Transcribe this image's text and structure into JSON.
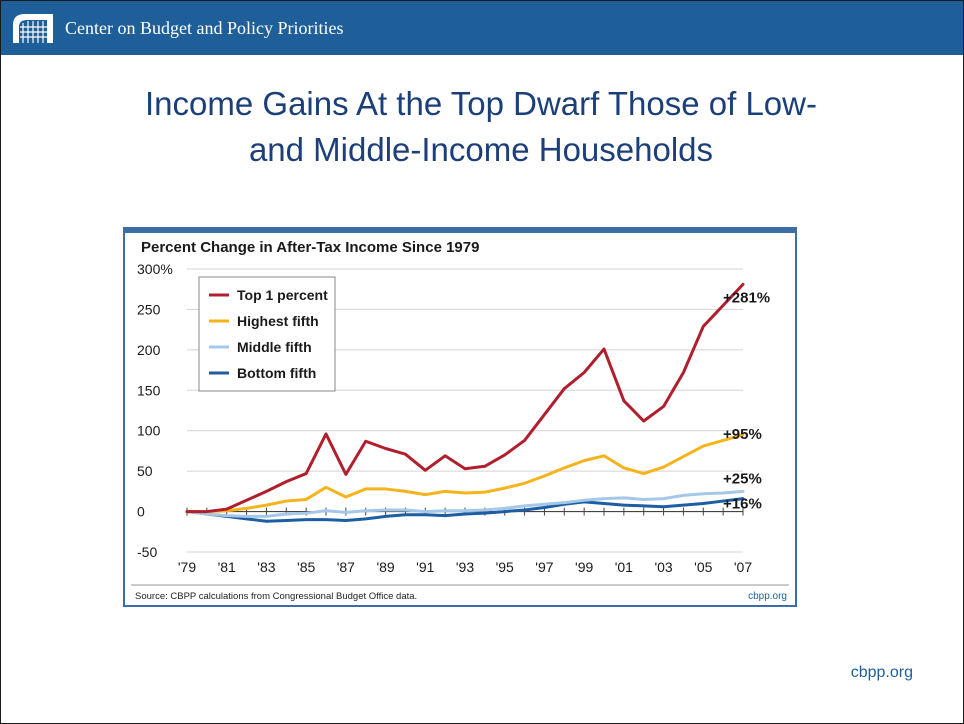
{
  "header": {
    "org_name": "Center on Budget and Policy Priorities"
  },
  "slide": {
    "title_line1": "Income Gains At the Top Dwarf Those of Low-",
    "title_line2": "and Middle-Income Households",
    "footer_link": "cbpp.org"
  },
  "colors": {
    "brand_blue": "#1e5f9a",
    "title_blue": "#1c3f7a",
    "top1": "#b01f2e",
    "highest_fifth": "#f5b41c",
    "middle_fifth": "#a6c8e8",
    "bottom_fifth": "#1d5da3"
  },
  "chart_data": {
    "type": "line",
    "title": "Percent Change in After-Tax Income Since 1979",
    "source": "Source: CBPP calculations from Congressional Budget Office data.",
    "credit": "cbpp.org",
    "x": [
      1979,
      1980,
      1981,
      1982,
      1983,
      1984,
      1985,
      1986,
      1987,
      1988,
      1989,
      1990,
      1991,
      1992,
      1993,
      1994,
      1995,
      1996,
      1997,
      1998,
      1999,
      2000,
      2001,
      2002,
      2003,
      2004,
      2005,
      2006,
      2007
    ],
    "x_tick_labels": [
      "'79",
      "'81",
      "'83",
      "'85",
      "'87",
      "'89",
      "'91",
      "'93",
      "'95",
      "'97",
      "'99",
      "'01",
      "'03",
      "'05",
      "'07"
    ],
    "x_tick_years": [
      1979,
      1981,
      1983,
      1985,
      1987,
      1989,
      1991,
      1993,
      1995,
      1997,
      1999,
      2001,
      2003,
      2005,
      2007
    ],
    "y_tick_labels": [
      "300%",
      "250",
      "200",
      "150",
      "100",
      "50",
      "0",
      "-50"
    ],
    "y_tick_values": [
      300,
      250,
      200,
      150,
      100,
      50,
      0,
      -50
    ],
    "ylim": [
      -50,
      300
    ],
    "grid": "horizontal",
    "legend_position": "top-left",
    "series": [
      {
        "name": "Top 1 percent",
        "end_label": "+281%",
        "values": [
          0,
          0,
          3,
          14,
          25,
          37,
          47,
          96,
          46,
          87,
          78,
          71,
          51,
          69,
          53,
          56,
          70,
          88,
          120,
          152,
          172,
          201,
          137,
          112,
          130,
          172,
          229,
          255,
          281
        ]
      },
      {
        "name": "Highest fifth",
        "end_label": "+95%",
        "values": [
          0,
          0,
          1,
          4,
          8,
          13,
          15,
          30,
          18,
          28,
          28,
          25,
          21,
          25,
          23,
          24,
          29,
          35,
          44,
          54,
          63,
          69,
          54,
          47,
          55,
          68,
          81,
          88,
          95
        ]
      },
      {
        "name": "Middle fifth",
        "end_label": "+25%",
        "values": [
          0,
          -3,
          -5,
          -6,
          -6,
          -3,
          -2,
          1,
          -1,
          1,
          2,
          2,
          0,
          1,
          1,
          2,
          4,
          7,
          9,
          11,
          14,
          16,
          17,
          15,
          16,
          20,
          22,
          23,
          25
        ]
      },
      {
        "name": "Bottom fifth",
        "end_label": "+16%",
        "values": [
          0,
          -3,
          -6,
          -9,
          -12,
          -11,
          -10,
          -10,
          -11,
          -9,
          -6,
          -4,
          -4,
          -5,
          -3,
          -2,
          0,
          2,
          5,
          9,
          12,
          10,
          8,
          7,
          6,
          8,
          10,
          13,
          16
        ]
      }
    ]
  }
}
